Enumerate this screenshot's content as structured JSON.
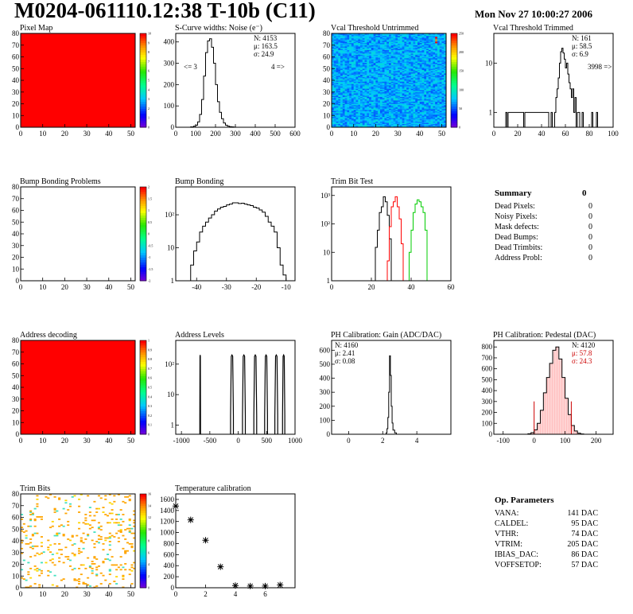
{
  "header": {
    "title": "M0204-061110.12:38 T-10b (C11)",
    "date": "Mon Nov 27 10:00:27 2006"
  },
  "summary": {
    "title": "Summary",
    "total": "0",
    "rows": [
      {
        "label": "Dead Pixels:",
        "value": "0"
      },
      {
        "label": "Noisy Pixels:",
        "value": "0"
      },
      {
        "label": "Mask defects:",
        "value": "0"
      },
      {
        "label": "Dead Bumps:",
        "value": "0"
      },
      {
        "label": "Dead Trimbits:",
        "value": "0"
      },
      {
        "label": "Address Probl:",
        "value": "0"
      }
    ]
  },
  "op_params": {
    "title": "Op. Parameters",
    "rows": [
      {
        "label": "VANA:",
        "value": "141 DAC"
      },
      {
        "label": "CALDEL:",
        "value": "95 DAC"
      },
      {
        "label": "VTHR:",
        "value": "74 DAC"
      },
      {
        "label": "VTRIM:",
        "value": "205 DAC"
      },
      {
        "label": "IBIAS_DAC:",
        "value": "86 DAC"
      },
      {
        "label": "VOFFSETOP:",
        "value": "57 DAC"
      }
    ]
  },
  "chart_data": [
    {
      "id": "pixel-map",
      "type": "heatmap",
      "title": "Pixel Map",
      "xlim": [
        0,
        52
      ],
      "ylim": [
        0,
        80
      ],
      "xticks": [
        "0",
        "10",
        "20",
        "30",
        "40",
        "50"
      ],
      "yticks": [
        "0",
        "10",
        "20",
        "30",
        "40",
        "50",
        "60",
        "70",
        "80"
      ],
      "fill_color": "#ff0000",
      "palette_ticks": [
        "0",
        "1",
        "2",
        "3",
        "4",
        "5",
        "6",
        "7",
        "8",
        "9",
        "10"
      ]
    },
    {
      "id": "scurve-noise",
      "type": "line",
      "title": "S-Curve widths: Noise (e⁻)",
      "xlim": [
        0,
        600
      ],
      "ylim": [
        0,
        440
      ],
      "xticks": [
        "0",
        "100",
        "200",
        "300",
        "400",
        "500",
        "600"
      ],
      "yticks": [
        "0",
        "100",
        "200",
        "300",
        "400"
      ],
      "x": [
        60,
        75,
        90,
        100,
        110,
        120,
        130,
        140,
        150,
        160,
        170,
        180,
        190,
        200,
        210,
        220,
        230,
        240,
        250,
        260,
        270,
        280,
        290,
        300,
        320
      ],
      "y": [
        0,
        2,
        5,
        10,
        25,
        60,
        130,
        240,
        350,
        405,
        415,
        375,
        300,
        200,
        120,
        70,
        40,
        20,
        10,
        5,
        3,
        2,
        1,
        0,
        0
      ],
      "stats": [
        "N: 4153",
        "μ: 163.5",
        "σ: 24.9"
      ],
      "annotations": [
        "<= 3",
        "4 =>"
      ]
    },
    {
      "id": "vcal-untrimmed",
      "type": "heatmap",
      "title": "Vcal Threshold Untrimmed",
      "xlim": [
        0,
        52
      ],
      "ylim": [
        0,
        80
      ],
      "xticks": [
        "0",
        "10",
        "20",
        "30",
        "40",
        "50"
      ],
      "yticks": [
        "0",
        "10",
        "20",
        "30",
        "40",
        "50",
        "60",
        "70",
        "80"
      ],
      "value_range": [
        0,
        255
      ],
      "mean": 70,
      "palette_ticks": [
        "0",
        "50",
        "100",
        "150",
        "200",
        "250"
      ]
    },
    {
      "id": "vcal-trimmed",
      "type": "line",
      "title": "Vcal Threshold Trimmed",
      "xlim": [
        0,
        100
      ],
      "log_y": true,
      "ylim": [
        0.5,
        40
      ],
      "xticks": [
        "0",
        "20",
        "40",
        "60",
        "80",
        "100"
      ],
      "yticks": [
        "1",
        "10"
      ],
      "x": [
        10,
        11,
        12,
        24,
        25,
        26,
        45,
        46,
        47,
        48,
        49,
        50,
        51,
        52,
        53,
        54,
        55,
        56,
        57,
        58,
        59,
        60,
        61,
        62,
        63,
        64,
        65,
        66,
        67,
        68,
        69,
        70,
        71,
        72,
        73,
        74,
        75,
        82,
        83,
        86,
        87
      ],
      "y": [
        1,
        0,
        1,
        1,
        0,
        1,
        1,
        0,
        0,
        1,
        0,
        0,
        1,
        2,
        3,
        5,
        10,
        17,
        20,
        16,
        12,
        8,
        10,
        6,
        4,
        3,
        2,
        3,
        1,
        2,
        0,
        1,
        1,
        0,
        0,
        1,
        0,
        1,
        0,
        1,
        0
      ],
      "stats": [
        "N:  161",
        "μ:  58.5",
        "σ:  6.9"
      ],
      "annotations": [
        "3998 =>"
      ]
    },
    {
      "id": "bump-problems",
      "type": "heatmap",
      "title": "Bump Bonding Problems",
      "xlim": [
        0,
        52
      ],
      "ylim": [
        0,
        80
      ],
      "xticks": [
        "0",
        "10",
        "20",
        "30",
        "40",
        "50"
      ],
      "yticks": [
        "0",
        "10",
        "20",
        "30",
        "40",
        "50",
        "60",
        "70",
        "80"
      ],
      "fill_color": "",
      "palette_ticks": [
        "-2",
        "-1.5",
        "-1",
        "-0.5",
        "0",
        "0.5",
        "1",
        "1.5",
        "2"
      ]
    },
    {
      "id": "bump-bonding",
      "type": "line",
      "title": "Bump Bonding",
      "xlim": [
        -47,
        -7
      ],
      "log_y": true,
      "ylim": [
        1,
        700
      ],
      "xticks": [
        "-40",
        "-30",
        "-20",
        "-10"
      ],
      "yticks": [
        "1",
        "10",
        "10²"
      ],
      "x": [
        -43,
        -42,
        -41,
        -40,
        -39,
        -38,
        -37,
        -36,
        -35,
        -34,
        -33,
        -32,
        -31,
        -30,
        -29,
        -28,
        -27,
        -26,
        -25,
        -24,
        -23,
        -22,
        -21,
        -20,
        -19,
        -18,
        -17,
        -16,
        -15,
        -14,
        -13,
        -12,
        -11,
        -10
      ],
      "y": [
        1,
        3,
        8,
        15,
        30,
        45,
        60,
        80,
        100,
        130,
        150,
        170,
        180,
        200,
        210,
        230,
        230,
        220,
        225,
        210,
        200,
        190,
        170,
        160,
        140,
        120,
        90,
        60,
        45,
        30,
        10,
        3,
        1.5,
        1
      ],
      "stats": [],
      "annotations": []
    },
    {
      "id": "trim-bit-test",
      "type": "line",
      "title": "Trim Bit Test",
      "xlim": [
        0,
        60
      ],
      "log_y": true,
      "ylim": [
        1,
        2000
      ],
      "xticks": [
        "0",
        "20",
        "40",
        "60"
      ],
      "yticks": [
        "1",
        "10",
        "10²",
        "10³"
      ],
      "series": [
        {
          "name": "",
          "color": "#000000",
          "x": [
            21,
            22,
            23,
            24,
            25,
            26,
            27,
            28,
            29,
            30
          ],
          "y": [
            1,
            15,
            60,
            250,
            400,
            900,
            600,
            200,
            30,
            1
          ]
        },
        {
          "name": "",
          "color": "#ff0000",
          "x": [
            27,
            28,
            29,
            30,
            31,
            32,
            33,
            34,
            35,
            36
          ],
          "y": [
            1,
            5,
            80,
            400,
            600,
            900,
            400,
            150,
            20,
            1
          ]
        },
        {
          "name": "",
          "color": "#00cc00",
          "x": [
            38,
            39,
            40,
            41,
            42,
            43,
            44,
            45,
            46,
            47,
            48
          ],
          "y": [
            1,
            10,
            60,
            250,
            500,
            700,
            600,
            400,
            250,
            60,
            1
          ]
        }
      ],
      "stats": [],
      "annotations": []
    },
    {
      "id": "address-decoding",
      "type": "heatmap",
      "title": "Address decoding",
      "xlim": [
        0,
        52
      ],
      "ylim": [
        0,
        80
      ],
      "xticks": [
        "0",
        "10",
        "20",
        "30",
        "40",
        "50"
      ],
      "yticks": [
        "0",
        "10",
        "20",
        "30",
        "40",
        "50",
        "60",
        "70",
        "80"
      ],
      "fill_color": "#ff0000",
      "palette_ticks": [
        "0",
        "0.1",
        "0.2",
        "0.3",
        "0.4",
        "0.5",
        "0.6",
        "0.7",
        "0.8",
        "0.9",
        "1"
      ]
    },
    {
      "id": "address-levels",
      "type": "line",
      "title": "Address Levels",
      "xlim": [
        -1100,
        1000
      ],
      "log_y": true,
      "ylim": [
        0.5,
        600
      ],
      "xticks": [
        "-1000",
        "-500",
        "0",
        "500",
        "1000"
      ],
      "yticks": [
        "1",
        "10",
        "10²"
      ],
      "peaks": [
        {
          "center": -670,
          "width": 12,
          "height": 200
        },
        {
          "center": -110,
          "width": 50,
          "height": 200
        },
        {
          "center": 100,
          "width": 50,
          "height": 200
        },
        {
          "center": 300,
          "width": 50,
          "height": 200
        },
        {
          "center": 490,
          "width": 50,
          "height": 200
        },
        {
          "center": 670,
          "width": 50,
          "height": 200
        },
        {
          "center": 800,
          "width": 40,
          "height": 200
        }
      ],
      "stats": [],
      "annotations": []
    },
    {
      "id": "ph-gain",
      "type": "line",
      "title": "PH Calibration: Gain (ADC/DAC)",
      "xlim": [
        -1,
        6
      ],
      "ylim": [
        0,
        670
      ],
      "xticks": [
        "0",
        "2",
        "4"
      ],
      "yticks": [
        "0",
        "100",
        "200",
        "300",
        "400",
        "500",
        "600"
      ],
      "x": [
        2.1,
        2.2,
        2.25,
        2.3,
        2.35,
        2.4,
        2.45,
        2.5,
        2.55,
        2.6,
        2.7,
        2.8
      ],
      "y": [
        0,
        10,
        40,
        120,
        300,
        560,
        420,
        200,
        80,
        30,
        10,
        0
      ],
      "stats": [
        "N: 4160",
        "μ: 2.41",
        "σ: 0.08"
      ],
      "annotations": []
    },
    {
      "id": "ph-pedestal",
      "type": "line",
      "title": "PH Calibration: Pedestal (DAC)",
      "xlim": [
        -130,
        255
      ],
      "ylim": [
        0,
        860
      ],
      "xticks": [
        "-100",
        "0",
        "100",
        "200"
      ],
      "yticks": [
        "0",
        "100",
        "200",
        "300",
        "400",
        "500",
        "600",
        "700",
        "800"
      ],
      "x": [
        -30,
        -20,
        -10,
        0,
        10,
        20,
        30,
        40,
        50,
        60,
        70,
        80,
        90,
        100,
        110,
        120,
        130,
        140,
        150,
        160
      ],
      "y": [
        0,
        5,
        15,
        40,
        100,
        220,
        380,
        520,
        650,
        770,
        800,
        690,
        520,
        330,
        180,
        80,
        30,
        10,
        3,
        0
      ],
      "cut_lines": [
        0,
        120
      ],
      "stats": [
        "N: 4120",
        "μ: 57.8",
        "σ: 24.3"
      ],
      "annotations": []
    },
    {
      "id": "trim-bits",
      "type": "heatmap",
      "title": "Trim Bits",
      "xlim": [
        0,
        52
      ],
      "ylim": [
        0,
        80
      ],
      "xticks": [
        "0",
        "10",
        "20",
        "30",
        "40",
        "50"
      ],
      "yticks": [
        "0",
        "10",
        "20",
        "30",
        "40",
        "50",
        "60",
        "70",
        "80"
      ],
      "value_range": [
        0,
        16
      ],
      "palette_ticks": [
        "0",
        "2",
        "4",
        "6",
        "8",
        "10",
        "12",
        "14",
        "16"
      ]
    },
    {
      "id": "temp-calibration",
      "type": "scatter",
      "title": "Temperature calibration",
      "xlim": [
        0,
        8
      ],
      "ylim": [
        0,
        1700
      ],
      "xticks": [
        "0",
        "2",
        "4",
        "6"
      ],
      "yticks": [
        "0",
        "200",
        "400",
        "600",
        "800",
        "1000",
        "1200",
        "1400",
        "1600"
      ],
      "x": [
        0,
        1,
        2,
        3,
        4,
        5,
        6,
        7
      ],
      "y": [
        1480,
        1230,
        860,
        380,
        40,
        30,
        30,
        50
      ],
      "stats": [],
      "annotations": []
    }
  ]
}
